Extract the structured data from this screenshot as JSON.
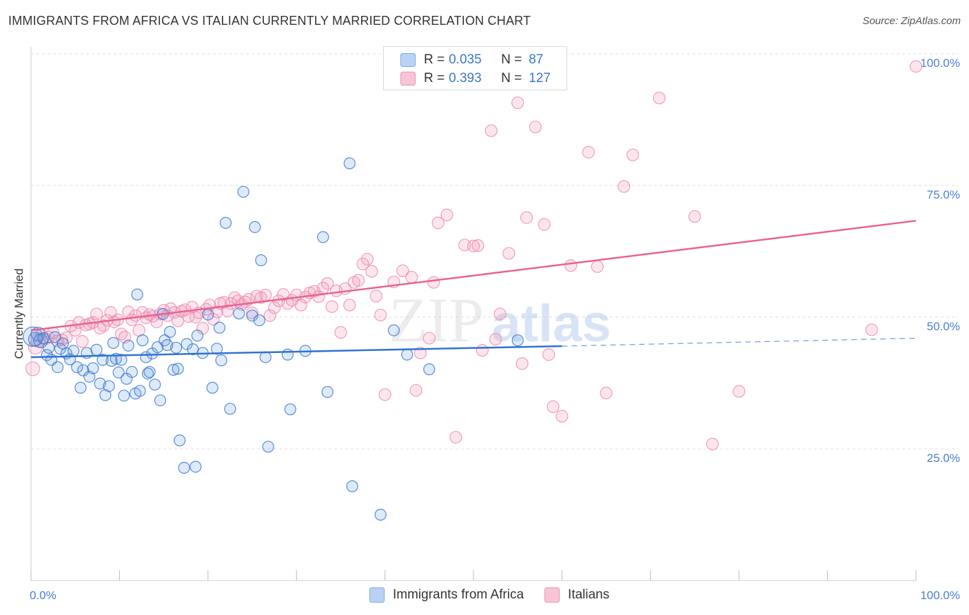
{
  "header": {
    "title": "IMMIGRANTS FROM AFRICA VS ITALIAN CURRENTLY MARRIED CORRELATION CHART",
    "source": "Source: ZipAtlas.com"
  },
  "watermark": {
    "zip": "ZIP",
    "atlas": "atlas"
  },
  "legend": {
    "rows": [
      {
        "r_label": "R = ",
        "r_value": "0.035",
        "n_label": "N = ",
        "n_value": "87"
      },
      {
        "r_label": "R = ",
        "r_value": "0.393",
        "n_label": "N = ",
        "n_value": "127"
      }
    ]
  },
  "bottom_legend": {
    "africa": "Immigrants from Africa",
    "italians": "Italians"
  },
  "chart_data": {
    "type": "scatter",
    "title": "IMMIGRANTS FROM AFRICA VS ITALIAN CURRENTLY MARRIED CORRELATION CHART",
    "xlabel": "",
    "ylabel": "Currently Married",
    "xlim": [
      0,
      100
    ],
    "ylim": [
      0,
      100
    ],
    "x_tick_labels": [
      "0.0%",
      "100.0%"
    ],
    "y_ticks": [
      25,
      50,
      75,
      100
    ],
    "y_tick_labels": [
      "25.0%",
      "50.0%",
      "75.0%",
      "100.0%"
    ],
    "grid": true,
    "legend_position": "top-center",
    "colors": {
      "africa": "#6a9fe0",
      "italians": "#f08cb0",
      "africa_line": "#2f72d0",
      "italians_line": "#e8628f",
      "axis_text": "#4a7fd0"
    },
    "series": [
      {
        "name": "Immigrants from Africa",
        "r": 0.035,
        "n": 87,
        "trend": {
          "x": [
            0,
            60
          ],
          "y": [
            42.4,
            44.5
          ],
          "dashed_to": [
            100,
            46.0
          ]
        },
        "points": [
          [
            0.2,
            46.3
          ],
          [
            0.5,
            45.8
          ],
          [
            0.8,
            46.8
          ],
          [
            1.1,
            45.5
          ],
          [
            1.4,
            46.0
          ],
          [
            1.8,
            42.8
          ],
          [
            2.0,
            44.2
          ],
          [
            2.3,
            41.9
          ],
          [
            2.7,
            46.2
          ],
          [
            3.0,
            40.5
          ],
          [
            3.3,
            44.0
          ],
          [
            3.6,
            45.0
          ],
          [
            4.0,
            43.1
          ],
          [
            4.4,
            42.0
          ],
          [
            4.8,
            43.6
          ],
          [
            5.2,
            40.5
          ],
          [
            5.6,
            36.6
          ],
          [
            5.9,
            39.9
          ],
          [
            6.3,
            43.2
          ],
          [
            6.6,
            38.7
          ],
          [
            7.0,
            40.3
          ],
          [
            7.4,
            43.8
          ],
          [
            7.8,
            37.4
          ],
          [
            8.1,
            41.9
          ],
          [
            8.4,
            35.2
          ],
          [
            8.8,
            36.9
          ],
          [
            9.1,
            41.7
          ],
          [
            9.3,
            45.1
          ],
          [
            9.6,
            42.1
          ],
          [
            9.9,
            39.5
          ],
          [
            10.2,
            41.9
          ],
          [
            10.5,
            35.1
          ],
          [
            10.8,
            38.3
          ],
          [
            11.0,
            44.6
          ],
          [
            11.4,
            39.6
          ],
          [
            11.8,
            35.5
          ],
          [
            12.0,
            54.3
          ],
          [
            12.3,
            36.0
          ],
          [
            12.6,
            45.6
          ],
          [
            13.0,
            42.4
          ],
          [
            13.2,
            39.3
          ],
          [
            13.4,
            39.6
          ],
          [
            13.7,
            43.1
          ],
          [
            14.0,
            37.2
          ],
          [
            14.3,
            44.3
          ],
          [
            14.6,
            34.2
          ],
          [
            14.9,
            50.6
          ],
          [
            15.1,
            45.6
          ],
          [
            15.4,
            44.7
          ],
          [
            15.7,
            47.2
          ],
          [
            16.1,
            40.0
          ],
          [
            16.4,
            44.2
          ],
          [
            16.6,
            40.2
          ],
          [
            16.8,
            26.6
          ],
          [
            17.3,
            21.4
          ],
          [
            17.6,
            44.9
          ],
          [
            18.3,
            43.9
          ],
          [
            18.6,
            21.6
          ],
          [
            18.8,
            46.5
          ],
          [
            19.4,
            43.2
          ],
          [
            20.0,
            50.5
          ],
          [
            20.5,
            36.6
          ],
          [
            21.0,
            44.0
          ],
          [
            21.3,
            48.0
          ],
          [
            21.5,
            41.8
          ],
          [
            22.0,
            67.9
          ],
          [
            22.5,
            32.6
          ],
          [
            23.5,
            50.7
          ],
          [
            24.0,
            73.8
          ],
          [
            25.0,
            50.3
          ],
          [
            25.3,
            67.1
          ],
          [
            25.8,
            49.4
          ],
          [
            26.0,
            60.8
          ],
          [
            26.5,
            42.4
          ],
          [
            26.8,
            25.4
          ],
          [
            29.0,
            42.9
          ],
          [
            29.3,
            32.5
          ],
          [
            31.0,
            43.6
          ],
          [
            33.0,
            65.2
          ],
          [
            33.5,
            35.8
          ],
          [
            36.0,
            79.2
          ],
          [
            36.3,
            17.9
          ],
          [
            39.5,
            12.5
          ],
          [
            41.0,
            47.5
          ],
          [
            42.5,
            42.9
          ],
          [
            45.0,
            40.1
          ],
          [
            55.0,
            45.6
          ]
        ]
      },
      {
        "name": "Italians",
        "r": 0.393,
        "n": 127,
        "trend": {
          "x": [
            0,
            100
          ],
          "y": [
            47.5,
            68.3
          ]
        },
        "points": [
          [
            0.2,
            40.2
          ],
          [
            0.5,
            44.3
          ],
          [
            0.8,
            45.6
          ],
          [
            1.2,
            46.6
          ],
          [
            1.6,
            45.9
          ],
          [
            2.0,
            46.2
          ],
          [
            2.5,
            47.0
          ],
          [
            3.0,
            45.5
          ],
          [
            3.5,
            45.7
          ],
          [
            4.0,
            46.1
          ],
          [
            4.5,
            48.3
          ],
          [
            5.0,
            47.5
          ],
          [
            5.4,
            49.0
          ],
          [
            5.8,
            45.4
          ],
          [
            6.2,
            48.5
          ],
          [
            6.6,
            48.7
          ],
          [
            7.0,
            49.0
          ],
          [
            7.4,
            50.6
          ],
          [
            7.8,
            47.9
          ],
          [
            8.2,
            48.4
          ],
          [
            8.6,
            49.4
          ],
          [
            9.0,
            50.9
          ],
          [
            9.4,
            49.1
          ],
          [
            9.8,
            49.5
          ],
          [
            10.2,
            46.8
          ],
          [
            10.6,
            46.2
          ],
          [
            11.0,
            51.0
          ],
          [
            11.4,
            49.5
          ],
          [
            11.8,
            50.3
          ],
          [
            12.2,
            47.5
          ],
          [
            12.6,
            50.9
          ],
          [
            13.0,
            49.9
          ],
          [
            13.4,
            50.5
          ],
          [
            13.8,
            50.2
          ],
          [
            14.2,
            49.1
          ],
          [
            14.6,
            50.6
          ],
          [
            15.0,
            51.3
          ],
          [
            15.4,
            50.3
          ],
          [
            15.8,
            51.6
          ],
          [
            16.2,
            50.9
          ],
          [
            16.6,
            49.3
          ],
          [
            17.0,
            51.1
          ],
          [
            17.4,
            51.4
          ],
          [
            17.8,
            50.1
          ],
          [
            18.2,
            51.9
          ],
          [
            18.6,
            50.0
          ],
          [
            19.0,
            50.8
          ],
          [
            19.4,
            47.9
          ],
          [
            19.8,
            51.5
          ],
          [
            20.2,
            52.3
          ],
          [
            20.6,
            49.6
          ],
          [
            21.0,
            51.0
          ],
          [
            21.4,
            52.6
          ],
          [
            21.8,
            52.8
          ],
          [
            22.2,
            51.2
          ],
          [
            22.6,
            52.6
          ],
          [
            23.0,
            53.7
          ],
          [
            23.4,
            53.1
          ],
          [
            23.8,
            52.4
          ],
          [
            24.2,
            52.9
          ],
          [
            24.6,
            53.4
          ],
          [
            25.0,
            50.8
          ],
          [
            25.5,
            54.0
          ],
          [
            26.0,
            53.7
          ],
          [
            26.5,
            54.2
          ],
          [
            27.0,
            50.3
          ],
          [
            27.5,
            51.8
          ],
          [
            28.0,
            53.1
          ],
          [
            28.5,
            54.3
          ],
          [
            29.0,
            52.6
          ],
          [
            29.5,
            53.2
          ],
          [
            30.0,
            54.2
          ],
          [
            30.5,
            52.3
          ],
          [
            31.0,
            53.8
          ],
          [
            31.5,
            54.6
          ],
          [
            32.0,
            54.9
          ],
          [
            32.5,
            53.9
          ],
          [
            33.0,
            55.5
          ],
          [
            33.5,
            56.4
          ],
          [
            34.0,
            52.0
          ],
          [
            34.5,
            55.0
          ],
          [
            35.0,
            47.1
          ],
          [
            35.5,
            55.4
          ],
          [
            36.0,
            52.3
          ],
          [
            36.5,
            56.6
          ],
          [
            37.0,
            57.0
          ],
          [
            37.5,
            60.1
          ],
          [
            38.0,
            61.0
          ],
          [
            38.5,
            58.7
          ],
          [
            39.0,
            54.0
          ],
          [
            39.5,
            50.4
          ],
          [
            40.0,
            35.3
          ],
          [
            41.0,
            56.7
          ],
          [
            42.0,
            58.8
          ],
          [
            43.0,
            57.6
          ],
          [
            43.5,
            36.1
          ],
          [
            44.0,
            43.2
          ],
          [
            45.0,
            46.0
          ],
          [
            45.5,
            56.6
          ],
          [
            46.0,
            67.9
          ],
          [
            47.0,
            69.4
          ],
          [
            48.0,
            27.2
          ],
          [
            49.0,
            63.7
          ],
          [
            50.0,
            63.5
          ],
          [
            50.5,
            63.6
          ],
          [
            51.0,
            43.7
          ],
          [
            52.0,
            85.4
          ],
          [
            52.5,
            45.8
          ],
          [
            53.0,
            50.6
          ],
          [
            54.0,
            62.1
          ],
          [
            55.0,
            90.7
          ],
          [
            55.5,
            41.2
          ],
          [
            56.0,
            68.9
          ],
          [
            57.0,
            86.1
          ],
          [
            58.0,
            67.6
          ],
          [
            58.5,
            42.9
          ],
          [
            59.0,
            33.0
          ],
          [
            60.0,
            31.2
          ],
          [
            61.0,
            59.8
          ],
          [
            63.0,
            81.3
          ],
          [
            64.0,
            59.6
          ],
          [
            65.0,
            35.6
          ],
          [
            67.0,
            74.8
          ],
          [
            68.0,
            80.8
          ],
          [
            71.0,
            91.6
          ],
          [
            75.0,
            69.1
          ],
          [
            77.0,
            25.9
          ],
          [
            80.0,
            35.9
          ],
          [
            95.0,
            47.6
          ],
          [
            100.0,
            97.6
          ]
        ]
      }
    ]
  }
}
